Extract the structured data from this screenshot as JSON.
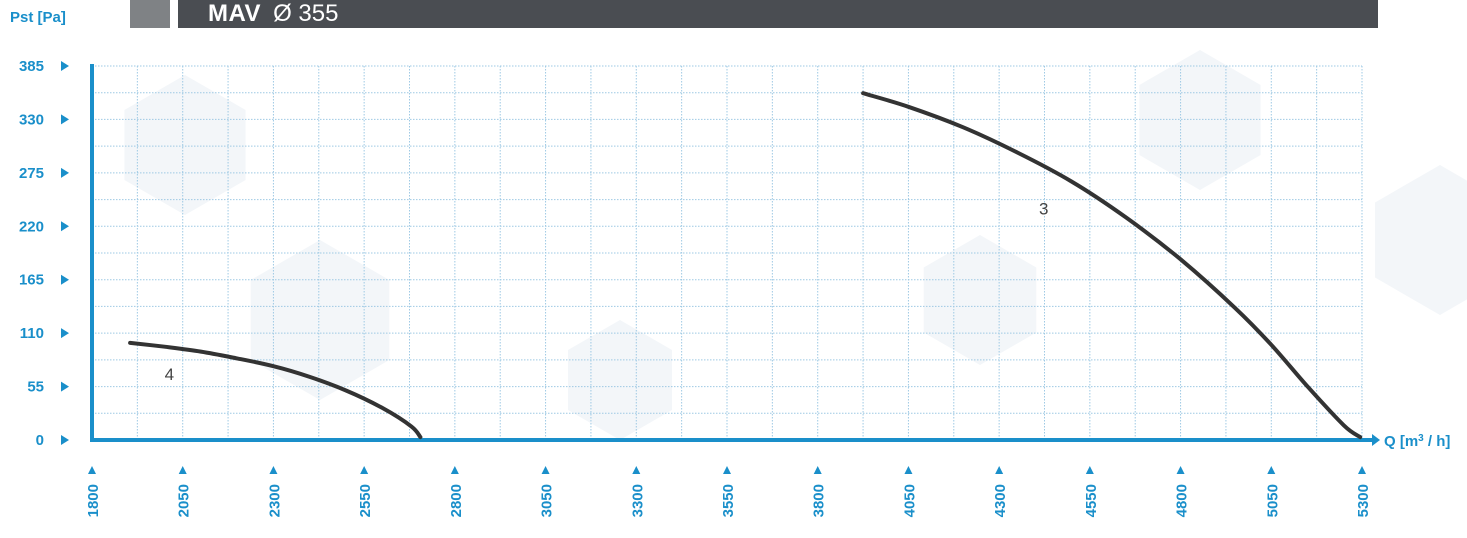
{
  "header": {
    "model": "MAV",
    "diameter": "Ø 355"
  },
  "chart_data": {
    "type": "line",
    "title": "",
    "xlabel": "Q [m³ / h]",
    "ylabel": "Pst [Pa]",
    "xlim": [
      1800,
      5300
    ],
    "ylim": [
      0,
      385
    ],
    "x_ticks": [
      1800,
      2050,
      2300,
      2550,
      2800,
      3050,
      3300,
      3550,
      3800,
      4050,
      4300,
      4550,
      4800,
      5050,
      5300
    ],
    "y_ticks": [
      0,
      55,
      110,
      165,
      220,
      275,
      330,
      385
    ],
    "grid": true,
    "series": [
      {
        "name": "4",
        "x": [
          1905,
          2000,
          2100,
          2200,
          2300,
          2400,
          2500,
          2600,
          2680,
          2705
        ],
        "y": [
          100,
          96,
          91,
          84,
          76,
          65,
          51,
          33,
          14,
          3
        ]
      },
      {
        "name": "3",
        "x": [
          3925,
          4050,
          4200,
          4350,
          4500,
          4650,
          4800,
          4950,
          5050,
          5150,
          5250,
          5295
        ],
        "y": [
          357,
          343,
          322,
          296,
          266,
          229,
          186,
          136,
          98,
          55,
          15,
          3
        ]
      }
    ]
  },
  "colors": {
    "axis": "#1a8fca",
    "grid": "#9ec9e4",
    "curve": "#333333",
    "header_bar": "#4a4d52",
    "header_square": "#7f8285"
  }
}
